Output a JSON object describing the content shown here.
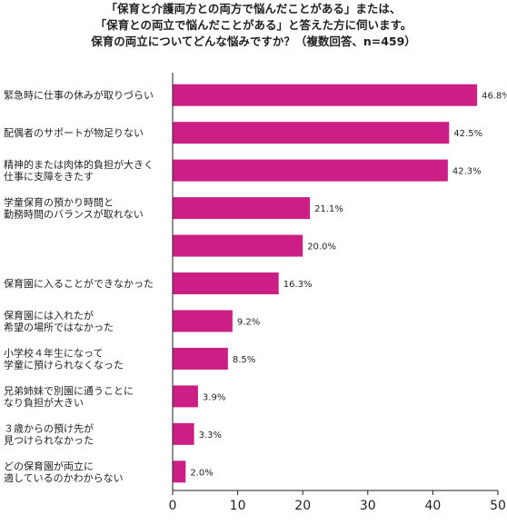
{
  "title_lines": [
    "「保育と介護両方との両方で悩んだことがある」または、",
    "「保育との両立で悩んだことがある」と答えた方に伺います。",
    "保育の両立についてどんな悩みですか？（複数回答、n=459）"
  ],
  "chart_data": {
    "type": "bar",
    "orientation": "horizontal",
    "categories": [
      [
        "緊急時に仕事の休みが取りづらい"
      ],
      [
        "配偶者のサポートが物足りない"
      ],
      [
        "精神的または肉体的負担が大きく",
        "仕事に支障をきたす"
      ],
      [
        "学童保育の預かり時間と",
        "勤務時間のバランスが取れない"
      ],
      [
        ""
      ],
      [
        "保育園に入ることができなかった"
      ],
      [
        "保育園には入れたが",
        "希望の場所ではなかった"
      ],
      [
        "小学校４年生になって",
        "学童に預けられなくなった"
      ],
      [
        "兄弟姉妹で別園に通うことに",
        "なり負担が大きい"
      ],
      [
        "３歳からの預け先が",
        "見つけられなかった"
      ],
      [
        "どの保育園が両立に",
        "適しているのかわからない"
      ]
    ],
    "values": [
      46.8,
      42.5,
      42.3,
      21.1,
      20.0,
      16.3,
      9.2,
      8.5,
      3.9,
      3.3,
      2.0
    ],
    "value_labels": [
      "46.8%",
      "42.5%",
      "42.3%",
      "21.1%",
      "20.0%",
      "16.3%",
      "9.2%",
      "8.5%",
      "3.9%",
      "3.3%",
      "2.0%"
    ],
    "xlim": [
      0,
      50
    ],
    "xticks": [
      0,
      10,
      20,
      30,
      40,
      50
    ],
    "bar_color": "#cc1f86",
    "grid": false
  }
}
